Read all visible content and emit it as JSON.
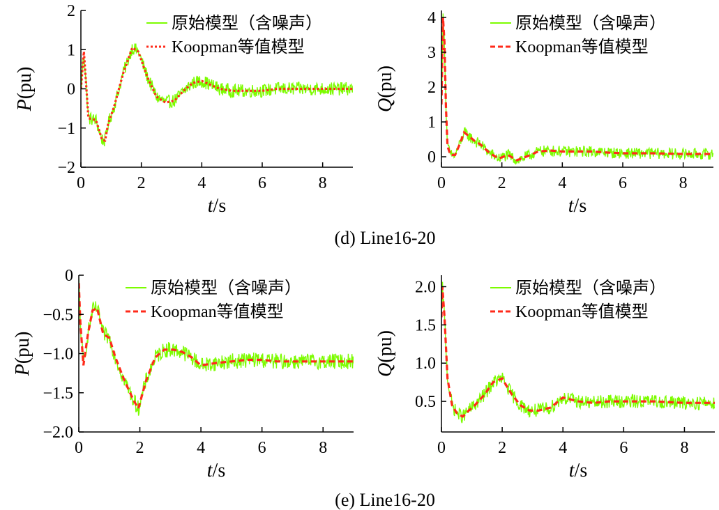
{
  "colors": {
    "noisy": "#7cfc00",
    "koopman": "#ff2a1a",
    "axis": "#000000"
  },
  "captions": [
    "(d) Line16-20",
    "(e) Line16-20"
  ],
  "chart_data": [
    {
      "id": "d-P",
      "type": "line",
      "ylabel": "P(pu)",
      "ylabel_var": "P",
      "ylabel_unit": "(pu)",
      "xlabel": "t/s",
      "xlim": [
        0,
        9
      ],
      "ylim": [
        -2,
        2
      ],
      "xticks": [
        0,
        2,
        4,
        6,
        8
      ],
      "xtick_labels": [
        "0",
        "2",
        "4",
        "6",
        "8"
      ],
      "yticks": [
        -2,
        -1,
        0,
        1,
        2
      ],
      "ytick_labels": [
        "−2",
        "−1",
        "0",
        "1",
        "2"
      ],
      "legend": [
        "原始模型（含噪声）",
        "Koopman等值模型"
      ],
      "legend_style": "dotted",
      "noise_amp": 0.17,
      "series": [
        {
          "name": "Koopman等值模型",
          "x": [
            0,
            0.1,
            0.25,
            0.5,
            0.7,
            0.8,
            0.9,
            1.1,
            1.4,
            1.7,
            1.9,
            2.2,
            2.5,
            2.8,
            3.1,
            3.4,
            3.7,
            4.0,
            4.3,
            4.6,
            5.0,
            5.5,
            6.0,
            6.5,
            7.0,
            7.5,
            8.0,
            8.5,
            9.0
          ],
          "y": [
            0.0,
            0.95,
            -0.75,
            -0.8,
            -1.3,
            -1.32,
            -0.9,
            -0.45,
            0.4,
            1.05,
            0.95,
            0.3,
            -0.2,
            -0.35,
            -0.3,
            -0.05,
            0.15,
            0.2,
            0.1,
            0.0,
            -0.05,
            -0.05,
            -0.05,
            0.0,
            0.0,
            0.0,
            0.0,
            0.0,
            0.0
          ]
        }
      ]
    },
    {
      "id": "d-Q",
      "type": "line",
      "ylabel": "Q(pu)",
      "ylabel_var": "Q",
      "ylabel_unit": "(pu)",
      "xlabel": "t/s",
      "xlim": [
        0,
        9
      ],
      "ylim": [
        -0.3,
        4.2
      ],
      "xticks": [
        0,
        2,
        4,
        6,
        8
      ],
      "xtick_labels": [
        "0",
        "2",
        "4",
        "6",
        "8"
      ],
      "yticks": [
        0,
        1,
        2,
        3,
        4
      ],
      "ytick_labels": [
        "0",
        "1",
        "2",
        "3",
        "4"
      ],
      "legend": [
        "原始模型（含噪声）",
        "Koopman等值模型"
      ],
      "legend_style": "dashed",
      "noise_amp": 0.16,
      "series": [
        {
          "name": "Koopman等值模型",
          "x": [
            0,
            0.05,
            0.1,
            0.15,
            0.2,
            0.3,
            0.45,
            0.6,
            0.75,
            0.9,
            1.1,
            1.3,
            1.6,
            1.9,
            2.2,
            2.5,
            2.8,
            3.2,
            3.6,
            4.0,
            4.5,
            5.0,
            5.5,
            6.0,
            7.0,
            8.0,
            9.0
          ],
          "y": [
            1.5,
            4.0,
            3.3,
            1.4,
            0.3,
            0.05,
            0.05,
            0.35,
            0.7,
            0.6,
            0.45,
            0.35,
            0.1,
            -0.05,
            0.05,
            -0.1,
            0.0,
            0.15,
            0.18,
            0.15,
            0.15,
            0.15,
            0.12,
            0.1,
            0.1,
            0.08,
            0.08
          ]
        }
      ]
    },
    {
      "id": "e-P",
      "type": "line",
      "ylabel": "P(pu)",
      "ylabel_var": "P",
      "ylabel_unit": "(pu)",
      "xlabel": "t/s",
      "xlim": [
        0,
        9
      ],
      "ylim": [
        -2.0,
        0
      ],
      "xticks": [
        0,
        2,
        4,
        6,
        8
      ],
      "xtick_labels": [
        "0",
        "2",
        "4",
        "6",
        "8"
      ],
      "yticks": [
        -2.0,
        -1.5,
        -1.0,
        -0.5,
        0
      ],
      "ytick_labels": [
        "−2.0",
        "−1.5",
        "−1.0",
        "−0.5",
        "0"
      ],
      "legend": [
        "原始模型（含噪声）",
        "Koopman等值模型"
      ],
      "legend_style": "dashed",
      "noise_amp": 0.1,
      "series": [
        {
          "name": "Koopman等值模型",
          "x": [
            0,
            0.05,
            0.15,
            0.3,
            0.45,
            0.6,
            0.8,
            1.0,
            1.2,
            1.5,
            1.8,
            1.95,
            2.2,
            2.5,
            2.8,
            3.1,
            3.4,
            3.7,
            4.0,
            4.5,
            5.0,
            5.5,
            6.0,
            6.5,
            7.0,
            8.0,
            9.0
          ],
          "y": [
            -0.1,
            -0.6,
            -1.15,
            -0.75,
            -0.45,
            -0.42,
            -0.75,
            -0.8,
            -1.05,
            -1.35,
            -1.6,
            -1.7,
            -1.35,
            -1.05,
            -0.95,
            -0.95,
            -0.98,
            -1.05,
            -1.15,
            -1.12,
            -1.1,
            -1.08,
            -1.08,
            -1.1,
            -1.1,
            -1.1,
            -1.1
          ]
        }
      ]
    },
    {
      "id": "e-Q",
      "type": "line",
      "ylabel": "Q(pu)",
      "ylabel_var": "Q",
      "ylabel_unit": "(pu)",
      "xlabel": "t/s",
      "xlim": [
        0,
        9
      ],
      "ylim": [
        0.1,
        2.15
      ],
      "xticks": [
        0,
        2,
        4,
        6,
        8
      ],
      "xtick_labels": [
        "0",
        "2",
        "4",
        "6",
        "8"
      ],
      "yticks": [
        0.5,
        1.0,
        1.5,
        2.0
      ],
      "ytick_labels": [
        "0.5",
        "1.0",
        "1.5",
        "2.0"
      ],
      "legend": [
        "原始模型（含噪声）",
        "Koopman等值模型"
      ],
      "legend_style": "dashed",
      "noise_amp": 0.09,
      "series": [
        {
          "name": "Koopman等值模型",
          "x": [
            0,
            0.03,
            0.1,
            0.2,
            0.35,
            0.5,
            0.7,
            0.9,
            1.1,
            1.4,
            1.7,
            2.0,
            2.3,
            2.6,
            2.9,
            3.2,
            3.6,
            4.0,
            4.5,
            5.0,
            5.5,
            6.0,
            6.5,
            7.0,
            8.0,
            9.0
          ],
          "y": [
            1.6,
            2.0,
            1.6,
            0.8,
            0.45,
            0.35,
            0.3,
            0.38,
            0.45,
            0.58,
            0.75,
            0.8,
            0.6,
            0.45,
            0.38,
            0.38,
            0.42,
            0.55,
            0.5,
            0.48,
            0.5,
            0.5,
            0.5,
            0.5,
            0.48,
            0.48
          ]
        }
      ]
    }
  ]
}
